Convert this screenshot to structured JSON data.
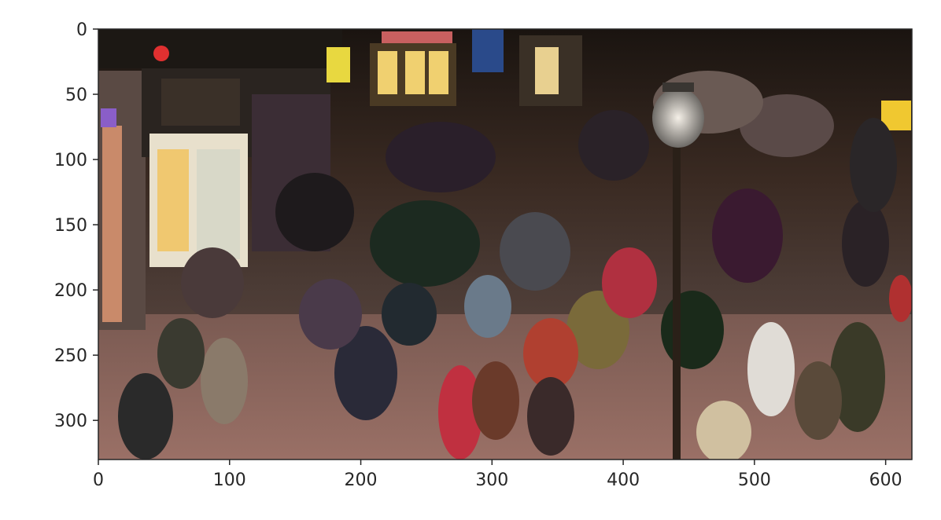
{
  "figure": {
    "image_description_kind": "deep-dream style processed photograph of a crowded pedestrian street at night",
    "image_extent": {
      "width": 620,
      "height": 330
    },
    "xticks": [
      0,
      100,
      200,
      300,
      400,
      500,
      600
    ],
    "yticks": [
      0,
      50,
      100,
      150,
      200,
      250,
      300
    ],
    "xtick_labels": [
      "0",
      "100",
      "200",
      "300",
      "400",
      "500",
      "600"
    ],
    "ytick_labels": [
      "0",
      "50",
      "100",
      "150",
      "200",
      "250",
      "300"
    ],
    "colors": {
      "axis": "#262626",
      "background": "#ffffff"
    }
  }
}
